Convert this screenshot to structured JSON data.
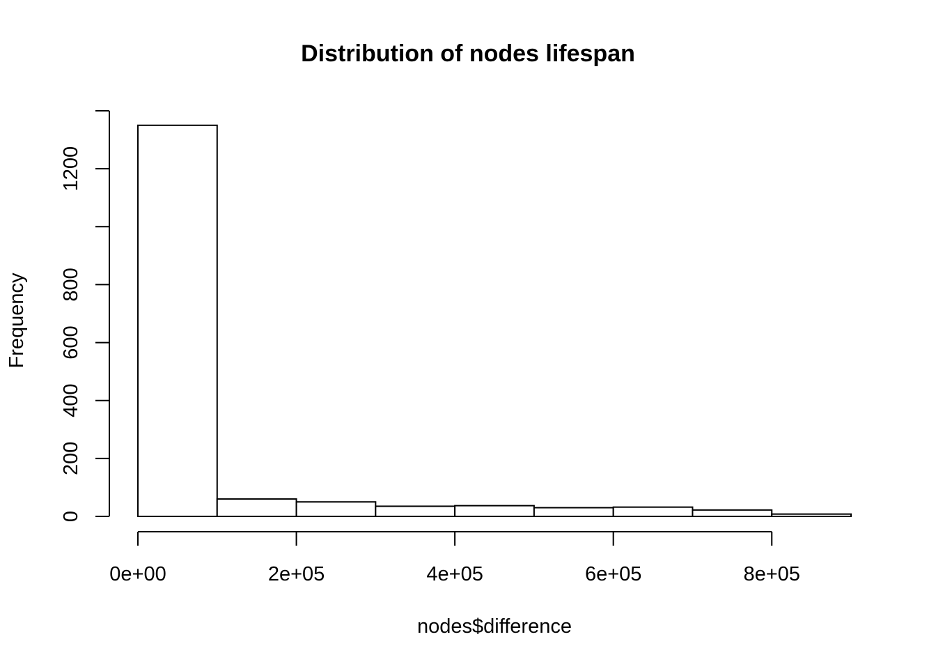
{
  "chart_data": {
    "type": "bar",
    "title": "Distribution of nodes lifespan",
    "xlabel": "nodes$difference",
    "ylabel": "Frequency",
    "bin_edges": [
      0,
      100000,
      200000,
      300000,
      400000,
      500000,
      600000,
      700000,
      800000,
      900000
    ],
    "values": [
      1350,
      60,
      50,
      35,
      37,
      30,
      32,
      22,
      8
    ],
    "xlim": [
      0,
      900000
    ],
    "ylim": [
      0,
      1400
    ],
    "x_ticks": [
      {
        "value": 0,
        "label": "0e+00"
      },
      {
        "value": 200000,
        "label": "2e+05"
      },
      {
        "value": 400000,
        "label": "4e+05"
      },
      {
        "value": 600000,
        "label": "6e+05"
      },
      {
        "value": 800000,
        "label": "8e+05"
      }
    ],
    "y_ticks": [
      {
        "value": 0,
        "label": "0"
      },
      {
        "value": 200,
        "label": "200"
      },
      {
        "value": 400,
        "label": "400"
      },
      {
        "value": 600,
        "label": "600"
      },
      {
        "value": 800,
        "label": "800"
      },
      {
        "value": 1000,
        "label": ""
      },
      {
        "value": 1200,
        "label": "1200"
      },
      {
        "value": 1400,
        "label": ""
      }
    ],
    "grid": false,
    "legend": "none",
    "bar_fill": "#ffffff",
    "bar_stroke": "#000000"
  }
}
